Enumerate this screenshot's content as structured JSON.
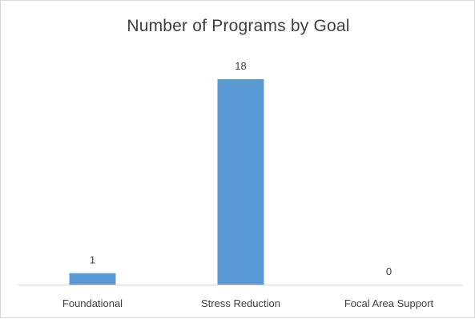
{
  "chart_data": {
    "type": "bar",
    "title": "Number of Programs by Goal",
    "categories": [
      "Foundational",
      "Stress Reduction",
      "Focal Area Support"
    ],
    "values": [
      1,
      18,
      0
    ],
    "data_labels": [
      "1",
      "18",
      "0"
    ],
    "xlabel": "",
    "ylabel": "",
    "ylim": [
      0,
      20
    ],
    "grid": false,
    "legend": "none",
    "bar_color": "#5b9bd5",
    "axis_color": "#d9d9d9"
  }
}
